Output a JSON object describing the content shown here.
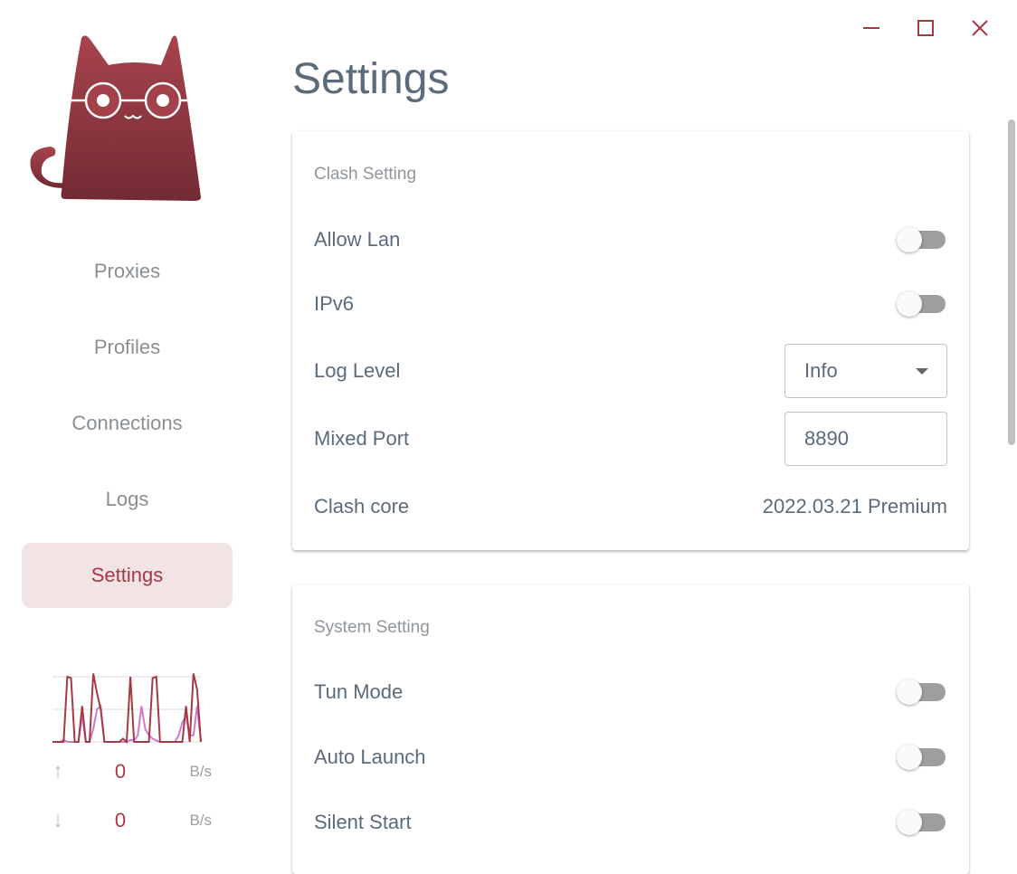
{
  "window": {
    "minimize_icon": "minimize-icon",
    "maximize_icon": "maximize-icon",
    "close_icon": "close-icon"
  },
  "sidebar": {
    "items": [
      {
        "label": "Proxies"
      },
      {
        "label": "Profiles"
      },
      {
        "label": "Connections"
      },
      {
        "label": "Logs"
      },
      {
        "label": "Settings",
        "active": true
      }
    ],
    "traffic": {
      "upload": {
        "value": "0",
        "unit": "B/s",
        "icon": "arrow-up-icon"
      },
      "download": {
        "value": "0",
        "unit": "B/s",
        "icon": "arrow-down-icon"
      },
      "graph": {
        "series_a_color": "#a53a45",
        "series_b_color": "#c87ccf",
        "series_a": [
          0,
          0,
          0,
          0,
          1,
          0.98,
          0,
          0,
          0.55,
          0,
          0,
          1.05,
          0.75,
          0.5,
          0,
          0,
          0,
          0,
          0,
          0.05,
          0,
          1,
          0,
          0,
          0,
          0,
          0,
          0.98,
          1,
          0,
          0,
          0,
          0,
          0,
          0,
          0,
          0.55,
          0,
          1.05,
          0.8,
          0
        ],
        "series_b": [
          0,
          0,
          0,
          0.03,
          0,
          0,
          0,
          0,
          0.4,
          0,
          0,
          0.2,
          0.5,
          0.55,
          0,
          0,
          0,
          0,
          0,
          0,
          0,
          0.03,
          0.02,
          0.1,
          0.55,
          0.2,
          0.1,
          0.05,
          0.02,
          0,
          0,
          0,
          0,
          0,
          0.1,
          0.3,
          0.4,
          0.1,
          0.1,
          0.55,
          0
        ]
      }
    }
  },
  "main": {
    "title": "Settings",
    "clash": {
      "title": "Clash Setting",
      "allow_lan": {
        "label": "Allow Lan",
        "on": false
      },
      "ipv6": {
        "label": "IPv6",
        "on": false
      },
      "log_level": {
        "label": "Log Level",
        "value": "Info"
      },
      "mixed_port": {
        "label": "Mixed Port",
        "value": "8890"
      },
      "core": {
        "label": "Clash core",
        "value": "2022.03.21 Premium"
      }
    },
    "system": {
      "title": "System Setting",
      "tun": {
        "label": "Tun Mode",
        "on": false
      },
      "auto_launch": {
        "label": "Auto Launch",
        "on": false
      },
      "silent_start": {
        "label": "Silent Start",
        "on": false
      }
    }
  },
  "colors": {
    "accent": "#a53a45",
    "active_bg": "#f2e3e4",
    "text": "#5b6b7c"
  }
}
